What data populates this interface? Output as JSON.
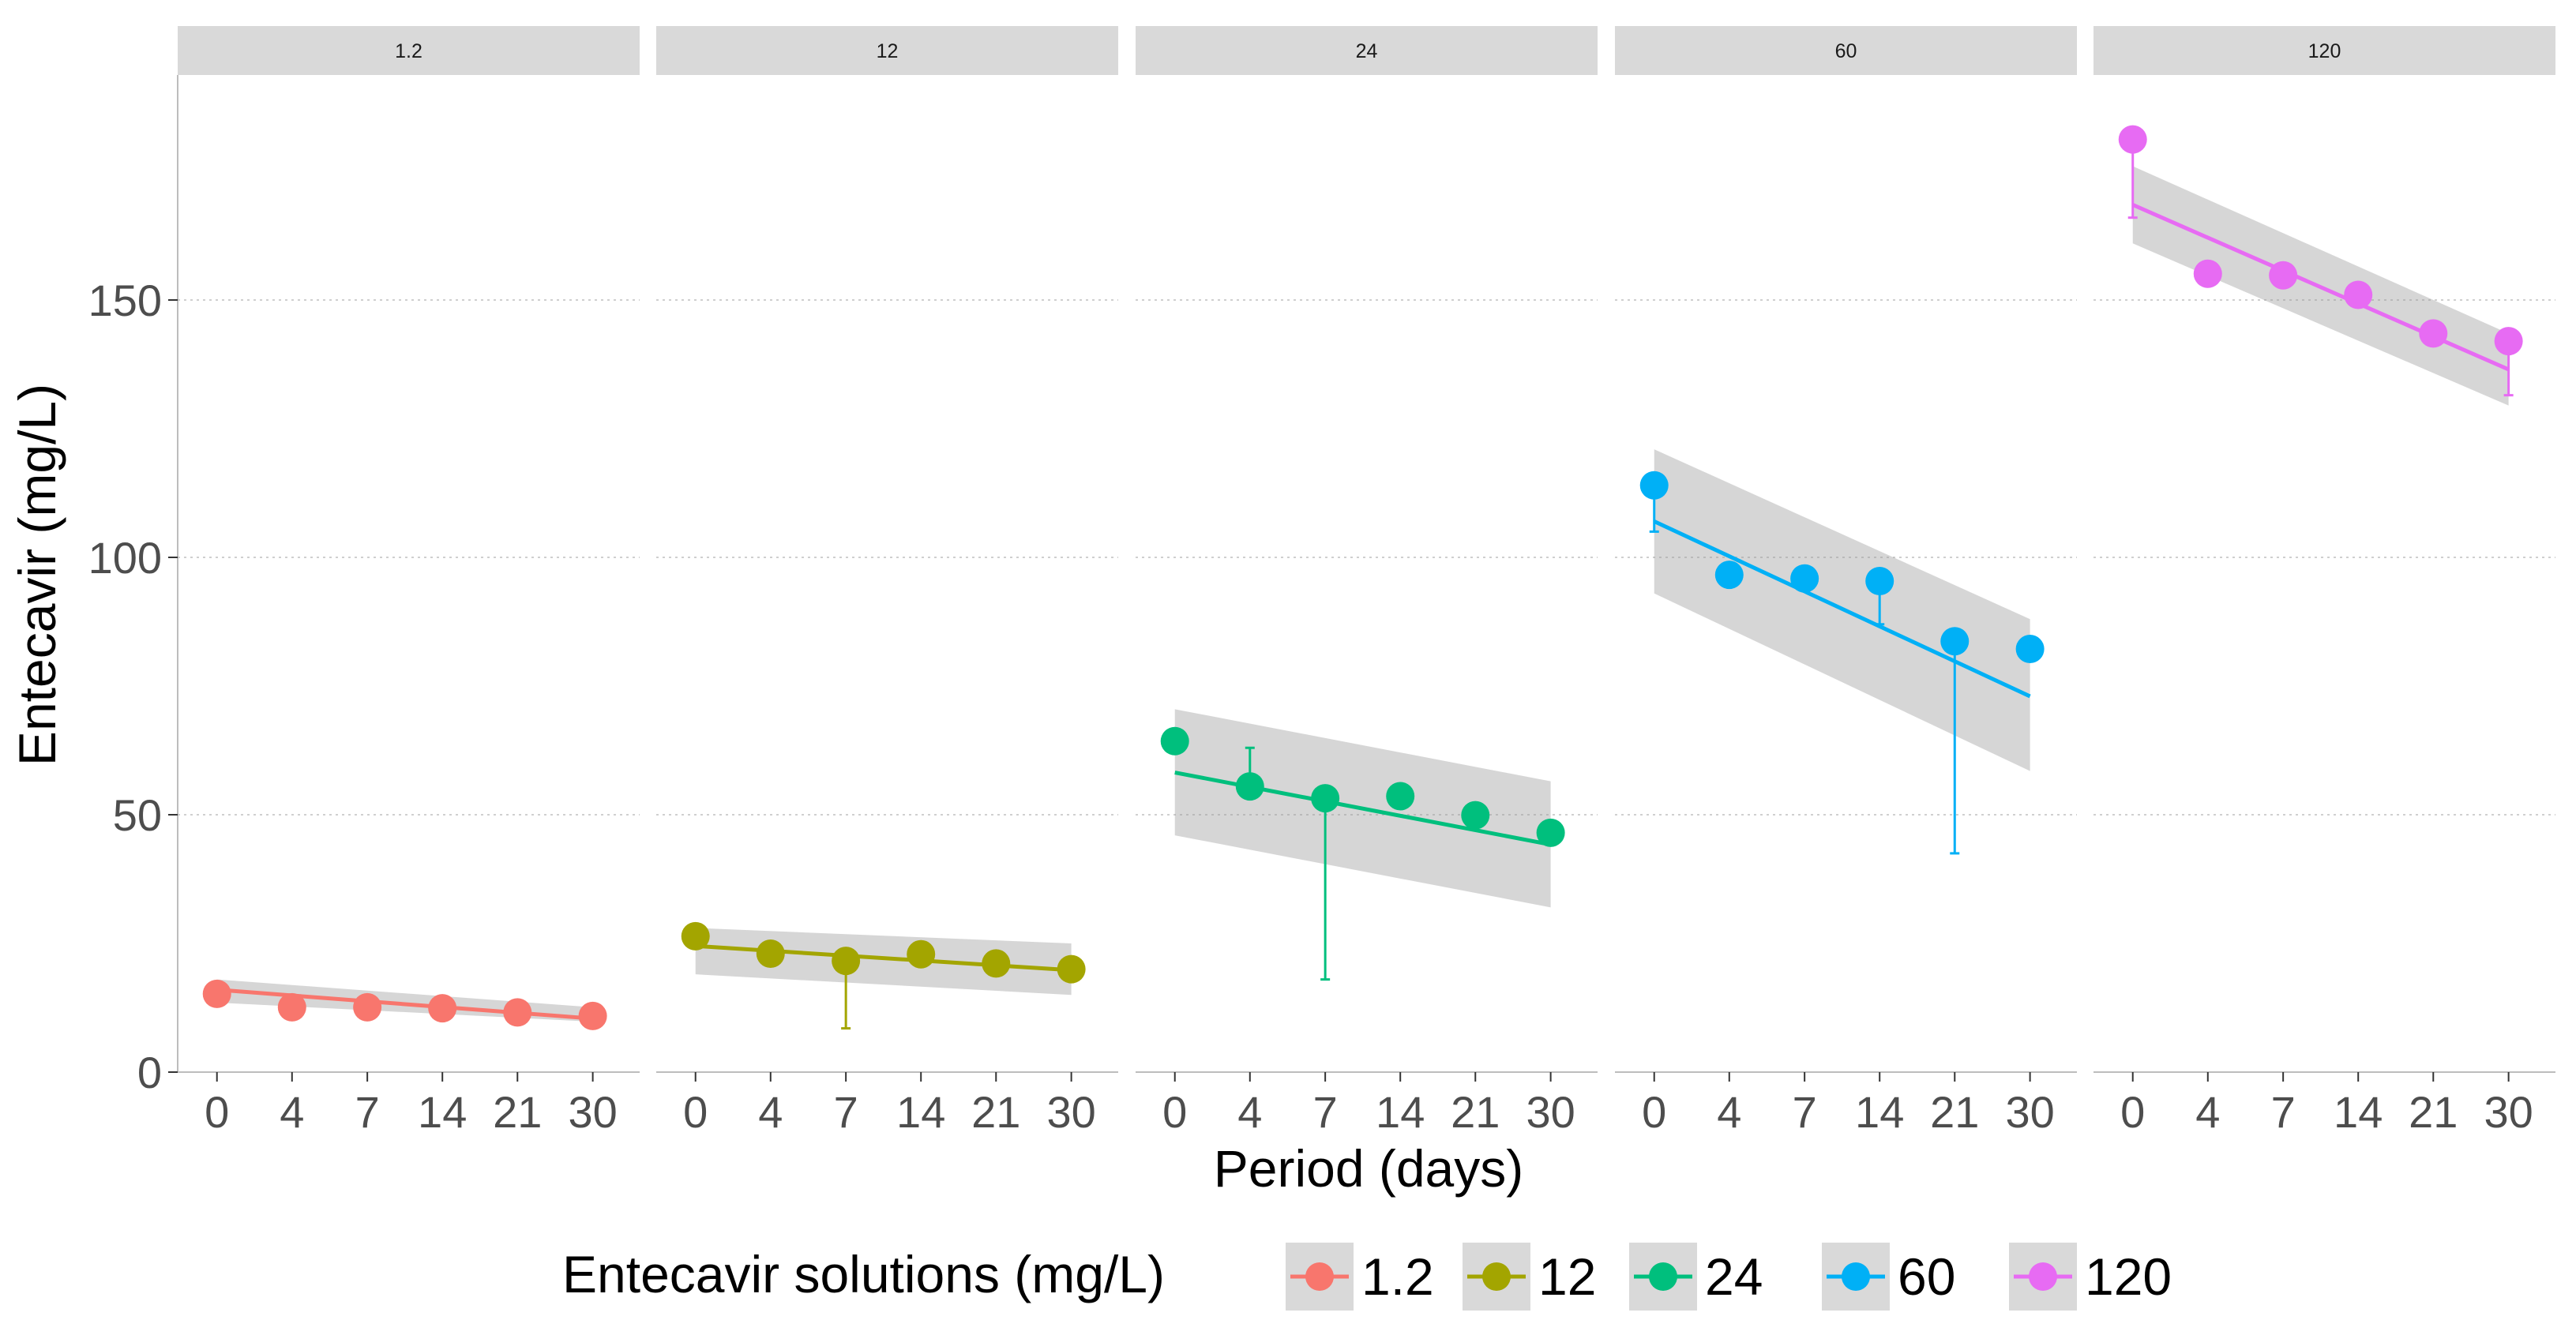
{
  "chart_data": {
    "type": "line",
    "facets": [
      {
        "label": "1.2",
        "color": "#F8766D",
        "points": [
          15.2,
          12.6,
          12.6,
          12.4,
          11.6,
          10.9
        ],
        "err_low": [
          null,
          null,
          null,
          null,
          null,
          null
        ],
        "err_high": [
          17.5,
          null,
          null,
          null,
          null,
          null
        ],
        "fit": [
          16.0,
          10.4
        ],
        "band_lo": [
          13.5,
          9.8
        ],
        "band_hi": [
          18.0,
          12.6
        ]
      },
      {
        "label": "12",
        "color": "#A3A500",
        "points": [
          26.4,
          23.0,
          21.6,
          22.9,
          21.1,
          20.0
        ],
        "err_low": [
          null,
          null,
          8.5,
          null,
          null,
          null
        ],
        "err_high": [
          null,
          null,
          null,
          null,
          null,
          null
        ],
        "fit": [
          24.5,
          19.8
        ],
        "band_lo": [
          19.0,
          15.0
        ],
        "band_hi": [
          28.0,
          25.0
        ]
      },
      {
        "label": "24",
        "color": "#00BF7D",
        "points": [
          64.3,
          55.5,
          53.2,
          53.6,
          49.9,
          46.5
        ],
        "err_low": [
          null,
          null,
          18.0,
          null,
          null,
          null
        ],
        "err_high": [
          null,
          63.0,
          null,
          null,
          null,
          null
        ],
        "fit": [
          58.2,
          44.2
        ],
        "band_lo": [
          46.0,
          32.0
        ],
        "band_hi": [
          70.5,
          56.5
        ]
      },
      {
        "label": "60",
        "color": "#00B0F6",
        "points": [
          114.0,
          96.6,
          95.9,
          95.4,
          83.7,
          82.2
        ],
        "err_low": [
          105.0,
          null,
          null,
          87.0,
          42.5,
          null
        ],
        "err_high": [
          null,
          null,
          null,
          null,
          null,
          null
        ],
        "fit": [
          107.0,
          73.0
        ],
        "band_lo": [
          93.0,
          58.5
        ],
        "band_hi": [
          121.0,
          88.0
        ]
      },
      {
        "label": "120",
        "color": "#E76BF3",
        "points": [
          181.2,
          155.1,
          154.8,
          151.0,
          143.5,
          142.0
        ],
        "err_low": [
          166.0,
          null,
          null,
          null,
          null,
          131.5
        ],
        "err_high": [
          null,
          null,
          null,
          null,
          null,
          null
        ],
        "fit": [
          168.5,
          136.5
        ],
        "band_lo": [
          161.0,
          129.5
        ],
        "band_hi": [
          176.0,
          143.5
        ]
      }
    ],
    "x_ticks": [
      "0",
      "4",
      "7",
      "14",
      "21",
      "30"
    ],
    "y_ticks": [
      "0",
      "50",
      "100",
      "150"
    ],
    "ylim": [
      0,
      200
    ],
    "xlabel": "Period (days)",
    "ylabel": "Entecavir (mg/L)",
    "legend": {
      "title": "Entecavir solutions (mg/L)",
      "position": "bottom",
      "entries": [
        "1.2",
        "12",
        "24",
        "60",
        "120"
      ]
    },
    "grid": "horizontal-major-dotted"
  }
}
